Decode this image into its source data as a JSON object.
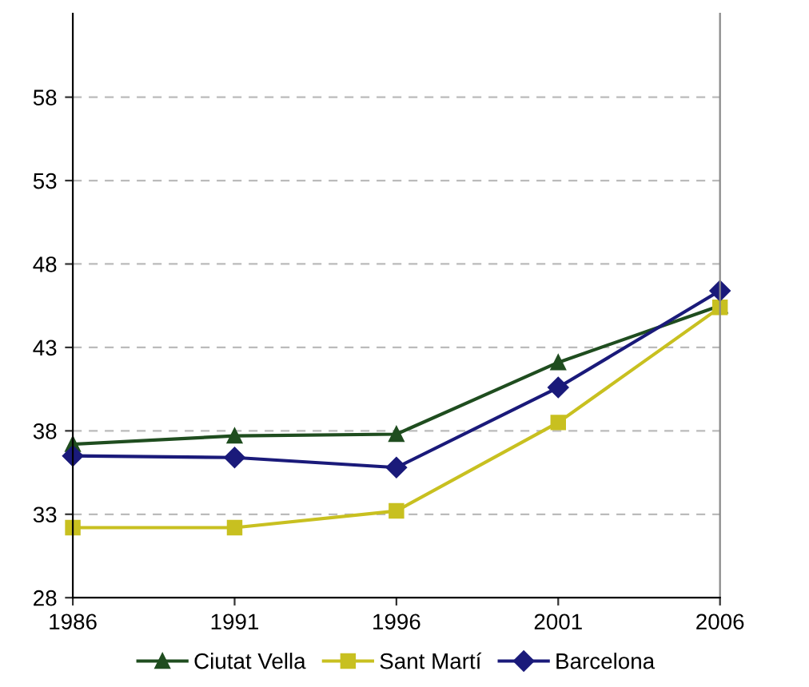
{
  "chart_data": {
    "type": "line",
    "x": [
      1986,
      1991,
      1996,
      2001,
      2006
    ],
    "xlim": [
      1986,
      2006
    ],
    "xticks": [
      1986,
      1991,
      1996,
      2001,
      2006
    ],
    "ylim": [
      28,
      63
    ],
    "yticks": [
      28,
      33,
      38,
      43,
      48,
      53,
      58
    ],
    "grid": "y",
    "legend": "bottom",
    "series": [
      {
        "name": "Ciutat Vella",
        "color": "#1f4d1f",
        "marker": "triangle",
        "values": [
          37.2,
          37.7,
          37.8,
          42.1,
          45.5
        ]
      },
      {
        "name": "Sant Martí",
        "color": "#c8c020",
        "marker": "square",
        "values": [
          32.2,
          32.2,
          33.2,
          38.5,
          45.4
        ]
      },
      {
        "name": "Barcelona",
        "color": "#1a1a7a",
        "marker": "diamond",
        "values": [
          36.5,
          36.4,
          35.8,
          40.6,
          46.4
        ]
      }
    ]
  }
}
